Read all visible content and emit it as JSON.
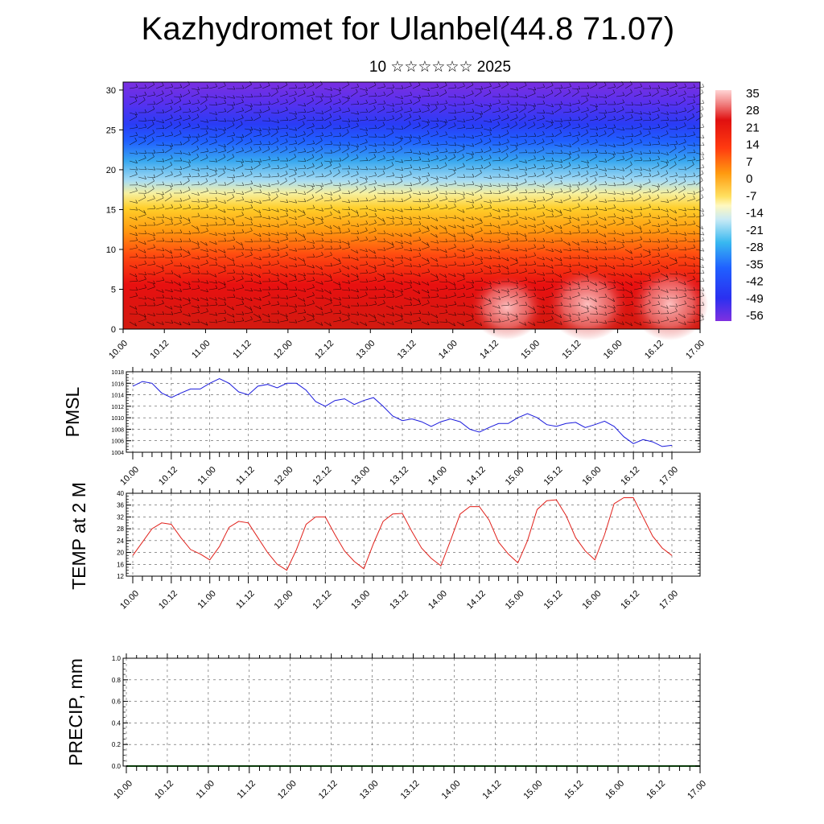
{
  "title": "Kazhydromet for Ulanbel(44.8 71.07)",
  "subtitle": "10 ☆☆☆☆☆☆ 2025",
  "time_ticks": [
    "10.00",
    "10.12",
    "11.00",
    "11.12",
    "12.00",
    "12.12",
    "13.00",
    "13.12",
    "14.00",
    "14.12",
    "15.00",
    "15.12",
    "16.00",
    "16.12",
    "17.00"
  ],
  "temp_ticks": [
    "10.00",
    "10.12",
    "11.00",
    "11.12",
    "12.00",
    "12.12",
    "13.00",
    "13.12",
    "14.00",
    "14.12",
    "15.00",
    "15.12",
    "16.00",
    "16.12",
    "17.00"
  ],
  "colors": {
    "pmsl_line": "#1a1adc",
    "temp_line": "#e0201a",
    "precip_line": "#0a3a0a"
  },
  "chart_data": [
    {
      "type": "heatmap",
      "description_key": "vertical_section",
      "ylim": [
        0,
        31
      ],
      "y_ticks": [
        0,
        5,
        10,
        15,
        20,
        25,
        30
      ],
      "colorbar_ticks": [
        "35",
        "28",
        "21",
        "14",
        "7",
        "0",
        "-7",
        "-14",
        "-21",
        "-28",
        "-35",
        "-42",
        "-49",
        "-56"
      ],
      "colorbar_range": [
        -63,
        42
      ],
      "x_ticks": [
        "10.00",
        "10.12",
        "11.00",
        "11.12",
        "12.00",
        "12.12",
        "13.00",
        "13.12",
        "14.00",
        "14.12",
        "15.00",
        "15.12",
        "16.00",
        "16.12",
        "17.00"
      ],
      "wind_barbs": true
    },
    {
      "type": "line",
      "ylabel": "PMSL",
      "ylim": [
        1004,
        1018
      ],
      "y_ticks": [
        1004,
        1006,
        1008,
        1010,
        1012,
        1014,
        1016,
        1018
      ],
      "x_ticks": [
        "10.00",
        "10.12",
        "11.00",
        "11.12",
        "12.00",
        "12.12",
        "13.00",
        "13.12",
        "14.00",
        "14.12",
        "15.00",
        "15.12",
        "16.00",
        "16.12",
        "17.00"
      ],
      "x_step_hours": 3,
      "values": [
        1015.5,
        1016.3,
        1016.0,
        1014.3,
        1013.5,
        1014.3,
        1015.0,
        1015.0,
        1016.0,
        1016.8,
        1016.0,
        1014.5,
        1014.0,
        1015.5,
        1015.8,
        1015.2,
        1016.0,
        1016.0,
        1014.8,
        1012.8,
        1012.0,
        1013.0,
        1013.3,
        1012.3,
        1013.0,
        1013.5,
        1012.0,
        1010.3,
        1009.5,
        1009.8,
        1009.3,
        1008.5,
        1009.3,
        1009.8,
        1009.3,
        1008.0,
        1007.5,
        1008.3,
        1009.0,
        1009.0,
        1010.0,
        1010.7,
        1010.0,
        1008.8,
        1008.5,
        1009.0,
        1009.2,
        1008.3,
        1008.8,
        1009.4,
        1008.5,
        1006.7,
        1005.5,
        1006.2,
        1005.8,
        1005.0,
        1005.2
      ]
    },
    {
      "type": "line",
      "ylabel": "TEMP at 2 M",
      "ylim": [
        12,
        40
      ],
      "y_ticks": [
        12,
        16,
        20,
        24,
        28,
        32,
        36,
        40
      ],
      "x_ticks": [
        "10.00",
        "10.12",
        "11.00",
        "11.12",
        "12.00",
        "12.12",
        "13.00",
        "13.12",
        "14.00",
        "14.12",
        "15.00",
        "15.12",
        "16.00",
        "16.12",
        "17.00"
      ],
      "x_step_hours": 3,
      "values": [
        19,
        23.5,
        28,
        30,
        29.5,
        25,
        21,
        19.5,
        17.5,
        22,
        28.5,
        30.5,
        30,
        25,
        20,
        16,
        14,
        21,
        29.5,
        32,
        32,
        26,
        20.5,
        17,
        14.5,
        23,
        30.5,
        33,
        33.2,
        27,
        21.5,
        18,
        15.5,
        24,
        33,
        35.5,
        35.5,
        31,
        23.5,
        19.5,
        16.5,
        24,
        34.5,
        37.5,
        37.8,
        32.5,
        25,
        20.5,
        17.5,
        26,
        36.5,
        38.5,
        38.5,
        32,
        25.5,
        21.5,
        19
      ]
    },
    {
      "type": "line",
      "ylabel": "PRECIP, mm",
      "ylim": [
        0,
        1
      ],
      "y_ticks": [
        "0.0",
        "0.2",
        "0.4",
        "0.6",
        "0.8",
        "1.0"
      ],
      "x_ticks": [
        "10.00",
        "10.12",
        "11.00",
        "11.12",
        "12.00",
        "12.12",
        "13.00",
        "13.12",
        "14.00",
        "14.12",
        "15.00",
        "15.12",
        "16.00",
        "16.12",
        "17.00"
      ],
      "x_step_hours": 3,
      "values": [
        0,
        0,
        0,
        0,
        0,
        0,
        0,
        0,
        0,
        0,
        0,
        0,
        0,
        0,
        0,
        0,
        0,
        0,
        0,
        0,
        0,
        0,
        0,
        0,
        0,
        0,
        0,
        0,
        0,
        0,
        0,
        0,
        0,
        0,
        0,
        0,
        0,
        0,
        0,
        0,
        0,
        0,
        0,
        0,
        0,
        0,
        0,
        0,
        0,
        0,
        0,
        0,
        0,
        0,
        0,
        0,
        0
      ]
    }
  ]
}
